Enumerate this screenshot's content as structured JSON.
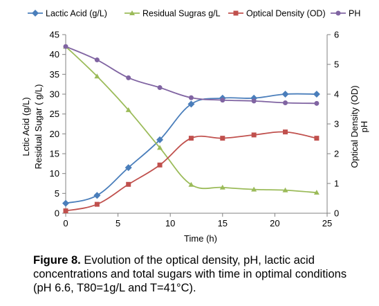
{
  "chart_data": {
    "type": "line",
    "x": [
      0,
      3,
      6,
      9,
      12,
      15,
      18,
      21,
      24
    ],
    "series": [
      {
        "name": "Lactic Acid (g/L)",
        "axis": "left",
        "color": "#4A7EBB",
        "marker": "diamond",
        "values": [
          2.5,
          4.5,
          11.5,
          18.5,
          27.5,
          29.0,
          29.0,
          30.0,
          30.0
        ]
      },
      {
        "name": "Residual Sugras g/L",
        "axis": "left",
        "color": "#9BBB59",
        "marker": "triangle",
        "values": [
          42.0,
          34.5,
          26.0,
          16.5,
          7.2,
          6.5,
          6.0,
          5.8,
          5.2
        ]
      },
      {
        "name": "Optical Density (OD)",
        "axis": "right",
        "color": "#C0504D",
        "marker": "square",
        "values": [
          0.08,
          0.3,
          0.97,
          1.62,
          2.52,
          2.52,
          2.63,
          2.73,
          2.52
        ]
      },
      {
        "name": "PH",
        "axis": "right",
        "color": "#8064A2",
        "marker": "circle",
        "values": [
          5.6,
          5.15,
          4.55,
          4.22,
          3.88,
          3.8,
          3.77,
          3.71,
          3.69
        ]
      }
    ],
    "xlabel": "Time (h)",
    "ylabel_left": [
      "Lctic Acid (g/L)",
      "Residual Sugar ( g/L)"
    ],
    "ylabel_right": [
      "Optical Density (OD)",
      "pH"
    ],
    "xlim": [
      0,
      25
    ],
    "xticks": [
      "0",
      "5",
      "10",
      "15",
      "20",
      "25"
    ],
    "ylim_left": [
      0,
      45
    ],
    "yticks_left": [
      "0",
      "5",
      "10",
      "15",
      "20",
      "25",
      "30",
      "35",
      "40",
      "45"
    ],
    "ylim_right": [
      0,
      6
    ],
    "yticks_right": [
      "0",
      "1",
      "2",
      "3",
      "4",
      "5",
      "6"
    ],
    "grid": false,
    "legend": "top"
  },
  "caption": {
    "label": "Figure 8.",
    "text": " Evolution of the optical density, pH, lactic acid concentrations and total sugars with time in optimal conditions (pH 6.6, T80=1g/L and T=41°C)."
  }
}
